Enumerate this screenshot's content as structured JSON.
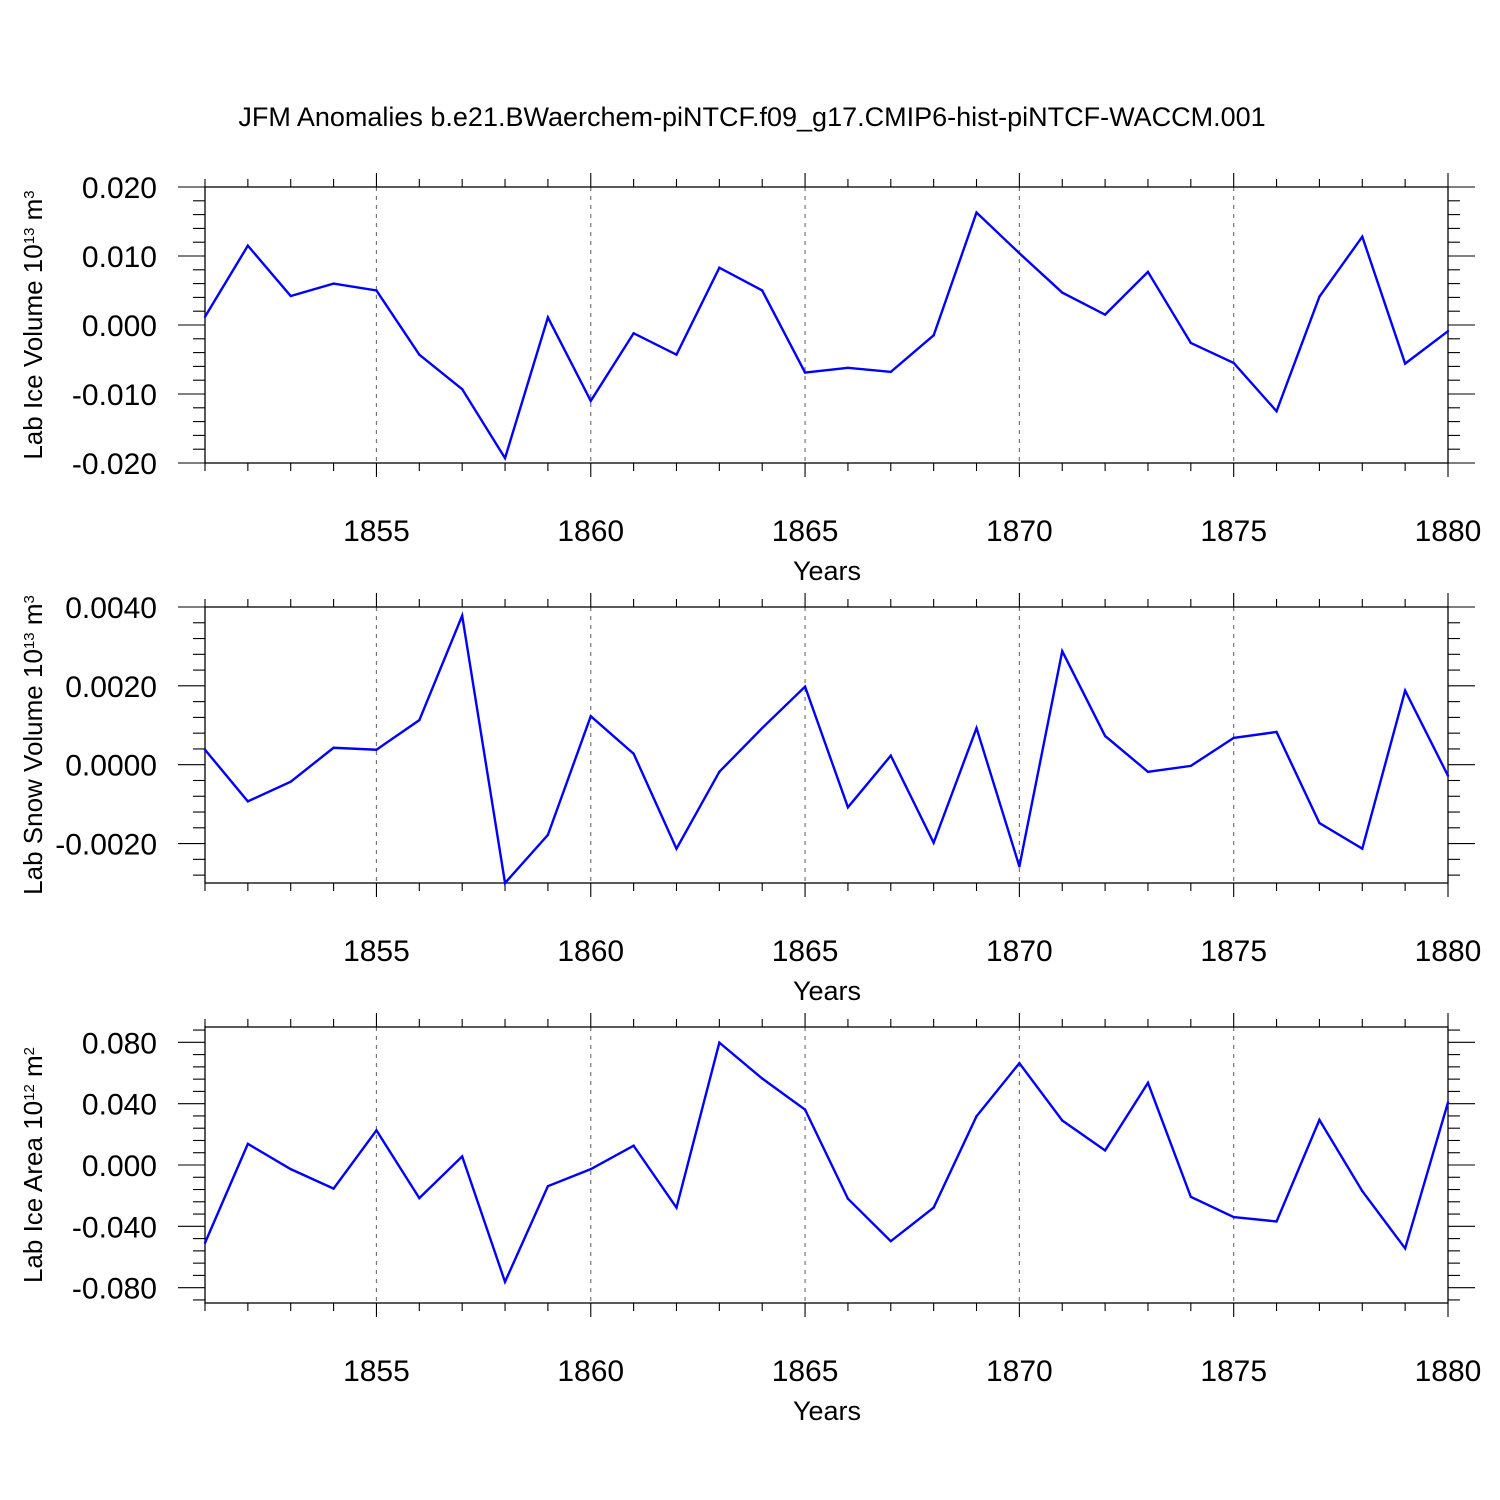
{
  "title": "JFM Anomalies b.e21.BWaerchem-piNTCF.f09_g17.CMIP6-hist-piNTCF-WACCM.001",
  "colors": {
    "line": "#0000ff",
    "axis": "#000000",
    "grid": "#777777",
    "background": "#ffffff"
  },
  "chart_data": [
    {
      "type": "line",
      "name": "Lab Ice Volume",
      "ylabel": {
        "prefix": "Lab Ice Volume 10",
        "exponent": "13",
        "unit": " m",
        "unit_exponent": "3"
      },
      "xlabel": "Years",
      "xlim": [
        1851,
        1880
      ],
      "ylim": [
        -0.02,
        0.02
      ],
      "xticks": [
        1855,
        1860,
        1865,
        1870,
        1875,
        1880
      ],
      "xtick_labels": [
        "1855",
        "1860",
        "1865",
        "1870",
        "1875",
        "1880"
      ],
      "yticks": [
        -0.02,
        -0.01,
        0.0,
        0.01,
        0.02
      ],
      "ytick_labels": [
        "-0.020",
        "-0.010",
        "0.000",
        "0.010",
        "0.020"
      ],
      "grid": "vertical dashed at major x ticks",
      "x": [
        1851,
        1852,
        1853,
        1854,
        1855,
        1856,
        1857,
        1858,
        1859,
        1860,
        1861,
        1862,
        1863,
        1864,
        1865,
        1866,
        1867,
        1868,
        1869,
        1870,
        1871,
        1872,
        1873,
        1874,
        1875,
        1876,
        1877,
        1878,
        1879,
        1880
      ],
      "values": [
        0.0012,
        0.0115,
        0.0042,
        0.006,
        0.005,
        -0.0043,
        -0.0093,
        -0.0193,
        0.0011,
        -0.011,
        -0.0012,
        -0.0043,
        0.0083,
        0.005,
        -0.0069,
        -0.0062,
        -0.0068,
        -0.0015,
        0.0163,
        0.0104,
        0.0047,
        0.0015,
        0.0077,
        -0.0026,
        -0.0055,
        -0.0125,
        0.0041,
        0.0128,
        -0.0056,
        -0.0009
      ]
    },
    {
      "type": "line",
      "name": "Lab Snow Volume",
      "ylabel": {
        "prefix": "Lab Snow Volume 10",
        "exponent": "13",
        "unit": " m",
        "unit_exponent": "3"
      },
      "xlabel": "Years",
      "xlim": [
        1851,
        1880
      ],
      "ylim": [
        -0.003,
        0.004
      ],
      "xticks": [
        1855,
        1860,
        1865,
        1870,
        1875,
        1880
      ],
      "xtick_labels": [
        "1855",
        "1860",
        "1865",
        "1870",
        "1875",
        "1880"
      ],
      "yticks": [
        -0.002,
        0.0,
        0.002,
        0.004
      ],
      "ytick_labels": [
        "-0.0020",
        "0.0000",
        "0.0020",
        "0.0040"
      ],
      "grid": "vertical dashed at major x ticks",
      "x": [
        1851,
        1852,
        1853,
        1854,
        1855,
        1856,
        1857,
        1858,
        1859,
        1860,
        1861,
        1862,
        1863,
        1864,
        1865,
        1866,
        1867,
        1868,
        1869,
        1870,
        1871,
        1872,
        1873,
        1874,
        1875,
        1876,
        1877,
        1878,
        1879,
        1880
      ],
      "values": [
        0.00038,
        -0.00093,
        -0.00043,
        0.00043,
        0.00038,
        0.00113,
        0.00378,
        -0.003,
        -0.00178,
        0.00123,
        0.00028,
        -0.00213,
        -0.00018,
        0.00093,
        0.00198,
        -0.00108,
        0.00023,
        -0.00198,
        0.00093,
        -0.00258,
        0.00288,
        0.00073,
        -0.00018,
        -3e-05,
        0.00068,
        0.00083,
        -0.00148,
        -0.00213,
        0.00188,
        -0.00028
      ]
    },
    {
      "type": "line",
      "name": "Lab Ice Area",
      "ylabel": {
        "prefix": "Lab Ice Area 10",
        "exponent": "12",
        "unit": " m",
        "unit_exponent": "2"
      },
      "xlabel": "Years",
      "xlim": [
        1851,
        1880
      ],
      "ylim": [
        -0.09,
        0.09
      ],
      "xticks": [
        1855,
        1860,
        1865,
        1870,
        1875,
        1880
      ],
      "xtick_labels": [
        "1855",
        "1860",
        "1865",
        "1870",
        "1875",
        "1880"
      ],
      "yticks": [
        -0.08,
        -0.04,
        0.0,
        0.04,
        0.08
      ],
      "ytick_labels": [
        "-0.080",
        "-0.040",
        "0.000",
        "0.040",
        "0.080"
      ],
      "grid": "vertical dashed at major x ticks",
      "x": [
        1851,
        1852,
        1853,
        1854,
        1855,
        1856,
        1857,
        1858,
        1859,
        1860,
        1861,
        1862,
        1863,
        1864,
        1865,
        1866,
        1867,
        1868,
        1869,
        1870,
        1871,
        1872,
        1873,
        1874,
        1875,
        1876,
        1877,
        1878,
        1879,
        1880
      ],
      "values": [
        -0.0508,
        0.0138,
        -0.0027,
        -0.0154,
        0.0226,
        -0.0216,
        0.0056,
        -0.0762,
        -0.0138,
        -0.0027,
        0.0126,
        -0.0278,
        0.0798,
        0.0564,
        0.0361,
        -0.022,
        -0.0497,
        -0.0278,
        0.0318,
        0.0664,
        0.029,
        0.0095,
        0.0536,
        -0.0208,
        -0.034,
        -0.0368,
        0.0294,
        -0.017,
        -0.0544,
        0.0408
      ]
    }
  ]
}
